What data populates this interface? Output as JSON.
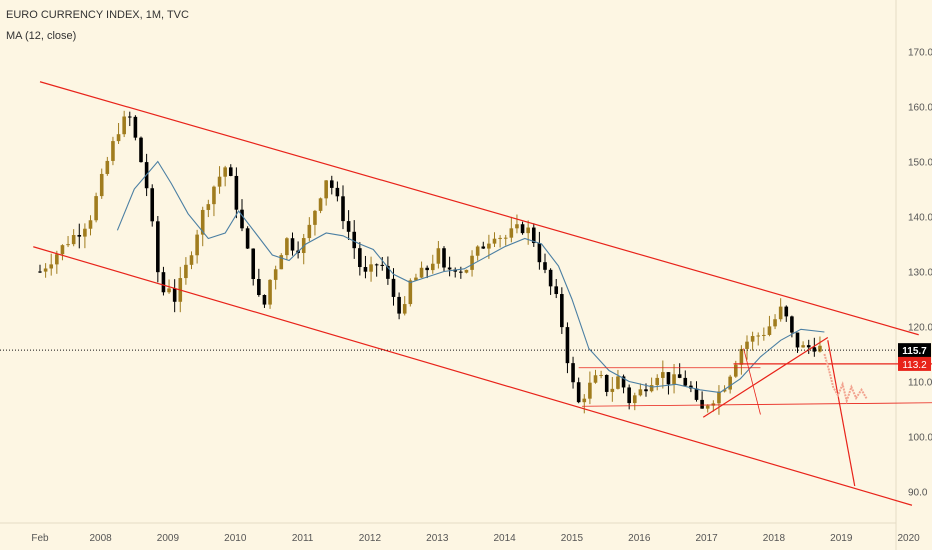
{
  "header": {
    "title": "EURO CURRENCY INDEX, 1M, TVC",
    "indicator": "MA (12, close)"
  },
  "colors": {
    "background": "#fdf6e3",
    "bull": "#a07c1e",
    "bear": "#000000",
    "ma": "#4b7fa3",
    "trendline": "#e8231a",
    "projection": "#f2a38f",
    "last_price_badge": "#000000",
    "level_badge": "#e8231a"
  },
  "chart_data": {
    "type": "candlestick",
    "title": "EURO CURRENCY INDEX, 1M, TVC",
    "interval": "1M",
    "x_tick_labels": [
      "Feb",
      "2008",
      "2009",
      "2010",
      "2011",
      "2012",
      "2013",
      "2014",
      "2015",
      "2016",
      "2017",
      "2018",
      "2019",
      "2020"
    ],
    "y_tick_labels": [
      "90.0",
      "100.0",
      "110.0",
      "120.0",
      "130.0",
      "140.0",
      "150.0",
      "160.0",
      "170.0"
    ],
    "ylim": [
      84.5,
      178
    ],
    "last_price": "115.7",
    "level_label": "113.2",
    "close_path": [
      [
        2007.1,
        130.0
      ],
      [
        2007.25,
        132.0
      ],
      [
        2007.4,
        134.0
      ],
      [
        2007.55,
        136.0
      ],
      [
        2007.7,
        137.5
      ],
      [
        2007.85,
        140.0
      ],
      [
        2008.0,
        146.0
      ],
      [
        2008.15,
        152.0
      ],
      [
        2008.3,
        157.0
      ],
      [
        2008.45,
        158.0
      ],
      [
        2008.55,
        152.0
      ],
      [
        2008.65,
        148.0
      ],
      [
        2008.75,
        140.0
      ],
      [
        2008.83,
        131.0
      ],
      [
        2008.92,
        126.0
      ],
      [
        2009.0,
        128.0
      ],
      [
        2009.1,
        125.0
      ],
      [
        2009.25,
        130.0
      ],
      [
        2009.4,
        136.0
      ],
      [
        2009.55,
        142.0
      ],
      [
        2009.7,
        146.0
      ],
      [
        2009.85,
        149.0
      ],
      [
        2009.95,
        146.0
      ],
      [
        2010.05,
        140.0
      ],
      [
        2010.15,
        135.0
      ],
      [
        2010.3,
        128.0
      ],
      [
        2010.4,
        122.0
      ],
      [
        2010.5,
        128.0
      ],
      [
        2010.6,
        131.0
      ],
      [
        2010.75,
        136.0
      ],
      [
        2010.9,
        134.0
      ],
      [
        2011.05,
        136.0
      ],
      [
        2011.2,
        142.0
      ],
      [
        2011.35,
        147.0
      ],
      [
        2011.45,
        145.0
      ],
      [
        2011.6,
        140.0
      ],
      [
        2011.75,
        135.0
      ],
      [
        2011.9,
        129.0
      ],
      [
        2012.0,
        130.0
      ],
      [
        2012.15,
        132.0
      ],
      [
        2012.3,
        127.0
      ],
      [
        2012.4,
        124.0
      ],
      [
        2012.5,
        122.0
      ],
      [
        2012.6,
        128.0
      ],
      [
        2012.75,
        129.5
      ],
      [
        2012.9,
        131.0
      ],
      [
        2013.0,
        134.0
      ],
      [
        2013.1,
        130.0
      ],
      [
        2013.25,
        131.0
      ],
      [
        2013.4,
        130.0
      ],
      [
        2013.55,
        133.0
      ],
      [
        2013.7,
        135.0
      ],
      [
        2013.85,
        137.0
      ],
      [
        2014.0,
        136.0
      ],
      [
        2014.15,
        137.5
      ],
      [
        2014.3,
        138.0
      ],
      [
        2014.4,
        137.0
      ],
      [
        2014.5,
        133.0
      ],
      [
        2014.65,
        128.0
      ],
      [
        2014.8,
        124.0
      ],
      [
        2014.92,
        115.0
      ],
      [
        2015.0,
        110.0
      ],
      [
        2015.1,
        106.0
      ],
      [
        2015.25,
        109.0
      ],
      [
        2015.4,
        111.0
      ],
      [
        2015.55,
        108.0
      ],
      [
        2015.7,
        111.0
      ],
      [
        2015.85,
        106.5
      ],
      [
        2016.0,
        108.0
      ],
      [
        2016.15,
        110.0
      ],
      [
        2016.3,
        112.0
      ],
      [
        2016.45,
        110.0
      ],
      [
        2016.6,
        110.5
      ],
      [
        2016.75,
        109.0
      ],
      [
        2016.9,
        104.0
      ],
      [
        2017.0,
        106.0
      ],
      [
        2017.1,
        107.0
      ],
      [
        2017.25,
        109.0
      ],
      [
        2017.4,
        113.0
      ],
      [
        2017.55,
        117.0
      ],
      [
        2017.7,
        118.0
      ],
      [
        2017.85,
        119.0
      ],
      [
        2018.0,
        121.0
      ],
      [
        2018.1,
        123.0
      ],
      [
        2018.2,
        121.0
      ],
      [
        2018.3,
        117.0
      ],
      [
        2018.45,
        116.0
      ],
      [
        2018.6,
        116.5
      ],
      [
        2018.75,
        115.7
      ]
    ],
    "moving_average_12": [
      [
        2008.25,
        137.5
      ],
      [
        2008.5,
        145.0
      ],
      [
        2008.85,
        150.0
      ],
      [
        2009.05,
        146.0
      ],
      [
        2009.3,
        140.5
      ],
      [
        2009.6,
        136.0
      ],
      [
        2009.85,
        137.0
      ],
      [
        2010.05,
        141.0
      ],
      [
        2010.3,
        137.0
      ],
      [
        2010.55,
        133.0
      ],
      [
        2010.8,
        132.0
      ],
      [
        2011.05,
        135.0
      ],
      [
        2011.35,
        137.0
      ],
      [
        2011.6,
        136.5
      ],
      [
        2011.85,
        135.0
      ],
      [
        2012.05,
        134.0
      ],
      [
        2012.35,
        129.5
      ],
      [
        2012.6,
        128.0
      ],
      [
        2012.85,
        129.0
      ],
      [
        2013.1,
        130.0
      ],
      [
        2013.4,
        130.5
      ],
      [
        2013.7,
        132.5
      ],
      [
        2014.0,
        134.5
      ],
      [
        2014.3,
        136.0
      ],
      [
        2014.55,
        135.0
      ],
      [
        2014.8,
        131.0
      ],
      [
        2015.0,
        125.0
      ],
      [
        2015.25,
        116.0
      ],
      [
        2015.55,
        112.0
      ],
      [
        2015.85,
        110.0
      ],
      [
        2016.2,
        109.0
      ],
      [
        2016.55,
        109.5
      ],
      [
        2016.9,
        108.5
      ],
      [
        2017.2,
        108.0
      ],
      [
        2017.5,
        110.5
      ],
      [
        2017.8,
        114.5
      ],
      [
        2018.1,
        117.5
      ],
      [
        2018.4,
        119.5
      ],
      [
        2018.75,
        119.0
      ]
    ],
    "trendlines": [
      {
        "name": "upper-channel",
        "from": [
          2007.1,
          164.5
        ],
        "to": [
          2020.15,
          118.5
        ]
      },
      {
        "name": "lower-channel",
        "from": [
          2007.0,
          134.5
        ],
        "to": [
          2020.05,
          87.5
        ]
      },
      {
        "name": "rising-support",
        "from": [
          2016.95,
          103.5
        ],
        "to": [
          2018.8,
          118.0
        ]
      },
      {
        "name": "support-line",
        "from": [
          2015.15,
          105.5
        ],
        "to": [
          2020.9,
          106.2
        ]
      },
      {
        "name": "resistance-box-top",
        "from": [
          2015.1,
          112.5
        ],
        "to": [
          2017.8,
          112.5
        ]
      },
      {
        "name": "level-113.2",
        "from": [
          2017.4,
          113.2
        ],
        "to": [
          2020.9,
          113.2
        ]
      },
      {
        "name": "projection-down",
        "from": [
          2018.8,
          117.5
        ],
        "to": [
          2019.2,
          91.0
        ]
      },
      {
        "name": "projection-kink",
        "from": [
          2017.55,
          116.0
        ],
        "to": [
          2017.8,
          104.0
        ]
      }
    ],
    "projection_path": [
      [
        2018.75,
        115.0
      ],
      [
        2018.82,
        112.0
      ],
      [
        2018.88,
        109.0
      ],
      [
        2018.95,
        107.5
      ],
      [
        2019.02,
        109.5
      ],
      [
        2019.08,
        106.5
      ],
      [
        2019.15,
        109.0
      ],
      [
        2019.22,
        107.0
      ],
      [
        2019.3,
        108.5
      ],
      [
        2019.38,
        106.8
      ]
    ]
  }
}
